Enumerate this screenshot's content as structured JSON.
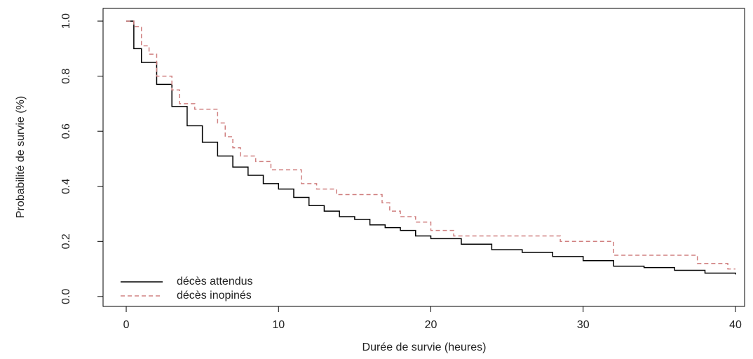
{
  "chart_data": {
    "type": "line",
    "step": "post",
    "x_label": "Durée de survie (heures)",
    "y_label": "Probabilité de survie (%)",
    "xlim": [
      -1.52,
      40.6
    ],
    "ylim": [
      -0.036,
      1.046
    ],
    "xticks": [
      0,
      10,
      20,
      30,
      40
    ],
    "yticks": [
      {
        "value": 0,
        "label": "0.0"
      },
      {
        "value": 0.2,
        "label": "0.2"
      },
      {
        "value": 0.4,
        "label": "0.4"
      },
      {
        "value": 0.6,
        "label": "0.6"
      },
      {
        "value": 0.8,
        "label": "0.8"
      },
      {
        "value": 1,
        "label": "1.0"
      }
    ],
    "legend": "bottomleft",
    "series": [
      {
        "name": "décès attendus",
        "color": "#000000",
        "dash": "solid",
        "x": [
          0,
          0.5,
          1,
          2,
          3,
          4,
          5,
          6,
          7,
          8,
          9,
          10,
          11,
          12,
          13,
          14,
          15,
          16,
          17,
          18,
          19,
          20,
          22,
          24,
          26,
          28,
          30,
          32,
          34,
          36,
          38,
          40
        ],
        "values": [
          1.0,
          0.9,
          0.85,
          0.77,
          0.69,
          0.62,
          0.56,
          0.51,
          0.47,
          0.44,
          0.41,
          0.39,
          0.36,
          0.33,
          0.31,
          0.29,
          0.28,
          0.26,
          0.25,
          0.24,
          0.22,
          0.21,
          0.19,
          0.17,
          0.16,
          0.145,
          0.13,
          0.11,
          0.105,
          0.095,
          0.085,
          0.08
        ]
      },
      {
        "name": "décès inopinés",
        "color": "#d08080",
        "dash": "dashed",
        "x": [
          0,
          0.5,
          1,
          1.5,
          2,
          3,
          3.5,
          4.5,
          6,
          6.5,
          7,
          7.5,
          8.5,
          9.5,
          11.5,
          12.5,
          13.8,
          16.8,
          17.3,
          18,
          19,
          20,
          21.5,
          28.5,
          32,
          37.5,
          39.5,
          40
        ],
        "values": [
          1.0,
          0.98,
          0.91,
          0.88,
          0.8,
          0.75,
          0.7,
          0.68,
          0.63,
          0.58,
          0.54,
          0.51,
          0.49,
          0.46,
          0.41,
          0.39,
          0.37,
          0.34,
          0.31,
          0.29,
          0.27,
          0.24,
          0.22,
          0.2,
          0.15,
          0.12,
          0.1,
          0.1
        ]
      }
    ]
  }
}
